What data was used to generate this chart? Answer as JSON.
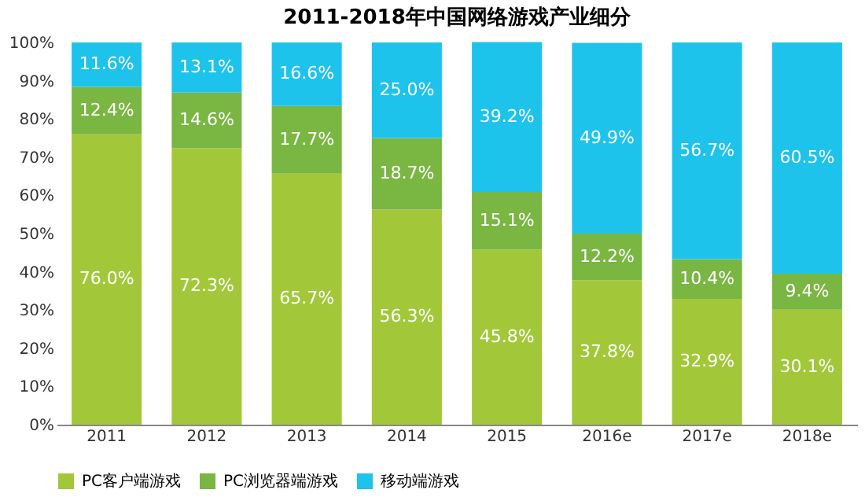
{
  "chart_data": {
    "type": "bar",
    "title": "2011-2018年中国网络游戏产业细分",
    "stacked": true,
    "legend": "bottom",
    "grid": false,
    "categories": [
      "2011",
      "2012",
      "2013",
      "2014",
      "2015",
      "2016e",
      "2017e",
      "2018e"
    ],
    "series": [
      {
        "name": "PC客户端游戏",
        "color": "#a2c83a",
        "values": [
          76.0,
          72.3,
          65.7,
          56.3,
          45.8,
          37.8,
          32.9,
          30.1
        ],
        "value_labels": [
          "76.0%",
          "72.3%",
          "65.7%",
          "56.3%",
          "45.8%",
          "37.8%",
          "32.9%",
          "30.1%"
        ]
      },
      {
        "name": "PC浏览器端游戏",
        "color": "#7ab642",
        "values": [
          12.4,
          14.6,
          17.7,
          18.7,
          15.1,
          12.2,
          10.4,
          9.4
        ],
        "value_labels": [
          "12.4%",
          "14.6%",
          "17.7%",
          "18.7%",
          "15.1%",
          "12.2%",
          "10.4%",
          "9.4%"
        ]
      },
      {
        "name": "移动端游戏",
        "color": "#1ec3ec",
        "values": [
          11.6,
          13.1,
          16.6,
          25.0,
          39.2,
          49.9,
          56.7,
          60.5
        ],
        "value_labels": [
          "11.6%",
          "13.1%",
          "16.6%",
          "25.0%",
          "39.2%",
          "49.9%",
          "56.7%",
          "60.5%"
        ]
      }
    ],
    "ylim": [
      0,
      100
    ],
    "yticks": [
      {
        "value": 0,
        "label": "0%"
      },
      {
        "value": 10,
        "label": "10%"
      },
      {
        "value": 20,
        "label": "20%"
      },
      {
        "value": 30,
        "label": "30%"
      },
      {
        "value": 40,
        "label": "40%"
      },
      {
        "value": 50,
        "label": "50%"
      },
      {
        "value": 60,
        "label": "60%"
      },
      {
        "value": 70,
        "label": "70%"
      },
      {
        "value": 80,
        "label": "80%"
      },
      {
        "value": 90,
        "label": "90%"
      },
      {
        "value": 100,
        "label": "100%"
      }
    ]
  }
}
